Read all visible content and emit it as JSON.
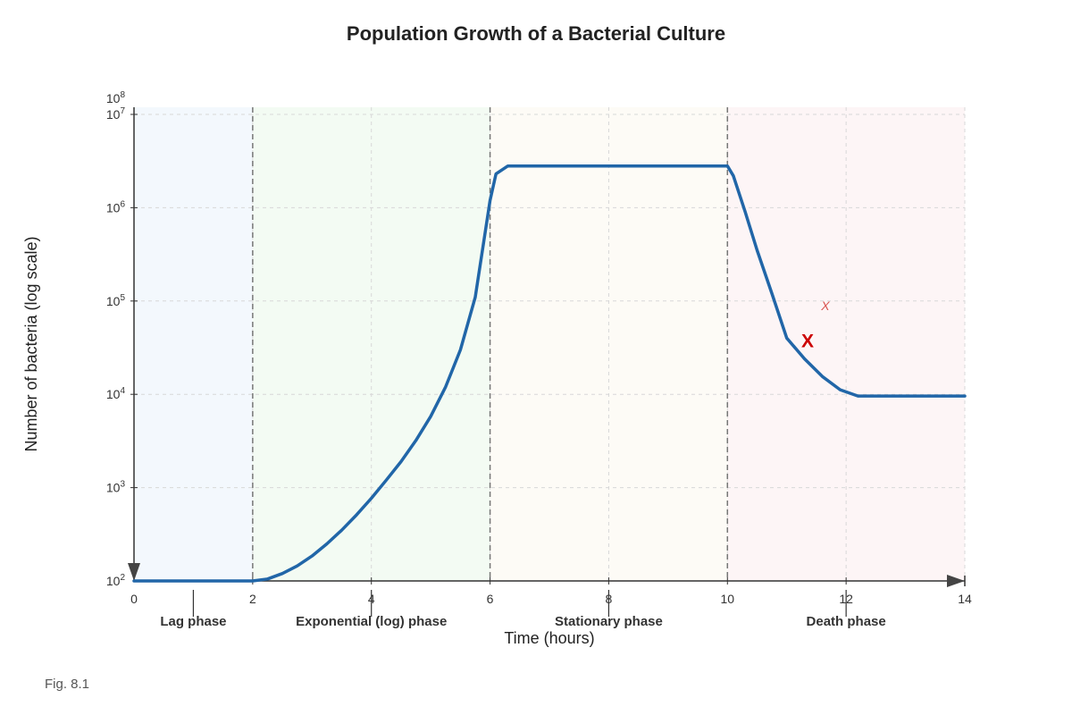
{
  "chart_data": {
    "type": "line",
    "title": "Population Growth of a Bacterial Culture",
    "xlabel": "Time (hours)",
    "ylabel": "Number of bacteria (log scale)",
    "x_scale": "linear",
    "y_scale": "log",
    "xlim": [
      0,
      14
    ],
    "ylim": [
      100,
      10000000
    ],
    "x_ticks": [
      "0",
      "2",
      "4",
      "6",
      "8",
      "10",
      "12",
      "14"
    ],
    "y_ticks": [
      {
        "base": "10",
        "exp": "2"
      },
      {
        "base": "10",
        "exp": "3"
      },
      {
        "base": "10",
        "exp": "4"
      },
      {
        "base": "10",
        "exp": "5"
      },
      {
        "base": "10",
        "exp": "6"
      },
      {
        "base": "10",
        "exp": "7"
      }
    ],
    "y_top_label": {
      "base": "10",
      "exp": "8"
    },
    "grid": true,
    "phases": [
      {
        "label": "Lag phase",
        "start": 0,
        "end": 2,
        "color": "#eaf2fb"
      },
      {
        "label": "Exponential (log) phase",
        "start": 2,
        "end": 6,
        "color": "#eaf7ea"
      },
      {
        "label": "Stationary phase",
        "start": 6,
        "end": 10,
        "color": "#fbf8ee"
      },
      {
        "label": "Death phase",
        "start": 10,
        "end": 14,
        "color": "#fbecee"
      }
    ],
    "boundaries": [
      2,
      6,
      10
    ],
    "series": [
      {
        "color": "#2166a8",
        "points": [
          [
            0,
            100
          ],
          [
            2,
            100
          ],
          [
            2.25,
            105
          ],
          [
            2.5,
            120
          ],
          [
            2.75,
            145
          ],
          [
            3,
            185
          ],
          [
            3.25,
            250
          ],
          [
            3.5,
            350
          ],
          [
            3.75,
            510
          ],
          [
            4,
            770
          ],
          [
            4.25,
            1200
          ],
          [
            4.5,
            1900
          ],
          [
            4.75,
            3200
          ],
          [
            5,
            5800
          ],
          [
            5.25,
            12000
          ],
          [
            5.5,
            30000
          ],
          [
            5.75,
            110000
          ],
          [
            6,
            1200000
          ],
          [
            6.1,
            2300000
          ],
          [
            6.3,
            2800000
          ],
          [
            10,
            2800000
          ],
          [
            10.1,
            2200000
          ],
          [
            10.3,
            900000
          ],
          [
            10.5,
            350000
          ],
          [
            10.75,
            120000
          ],
          [
            11,
            40000
          ],
          [
            11.3,
            24000
          ],
          [
            11.6,
            15500
          ],
          [
            11.9,
            11200
          ],
          [
            12.2,
            9600
          ],
          [
            14,
            9600
          ]
        ]
      }
    ],
    "annotations": [
      {
        "text": "X",
        "x": 11.35,
        "y": 32000,
        "color": "#cc0000",
        "style": "bold"
      },
      {
        "text": "X",
        "x": 11.65,
        "y": 80000,
        "color": "#d9534f",
        "style": "italic-small"
      }
    ]
  },
  "figure_label": "Fig. 8.1"
}
